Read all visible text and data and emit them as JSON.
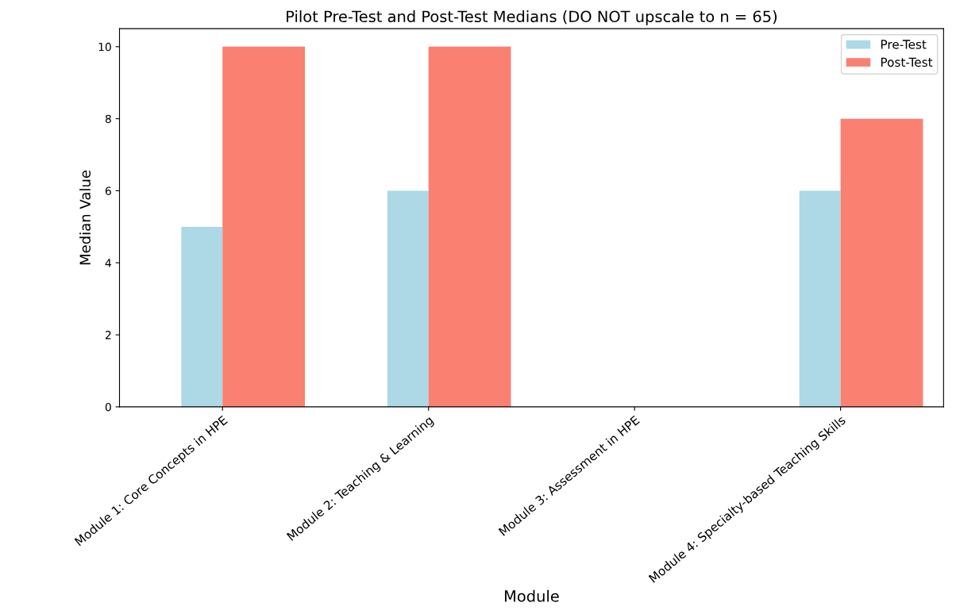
{
  "chart_data": {
    "type": "bar",
    "title": "Pilot Pre-Test and Post-Test Medians (DO NOT upscale to n = 65)",
    "xlabel": "Module",
    "ylabel": "Median Value",
    "categories": [
      "Module 1: Core Concepts in HPE",
      "Module 2: Teaching & Learning",
      "Module 3: Assessment in HPE",
      "Module 4: Specialty-based Teaching Skills"
    ],
    "series": [
      {
        "name": "Pre-Test",
        "color": "#add8e6",
        "values": [
          5,
          6,
          null,
          6
        ]
      },
      {
        "name": "Post-Test",
        "color": "#fa8072",
        "values": [
          10,
          10,
          null,
          8
        ]
      }
    ],
    "ylim": [
      0,
      10.5
    ],
    "yticks": [
      0,
      2,
      4,
      6,
      8,
      10
    ],
    "grid": false,
    "legend": "top right"
  }
}
